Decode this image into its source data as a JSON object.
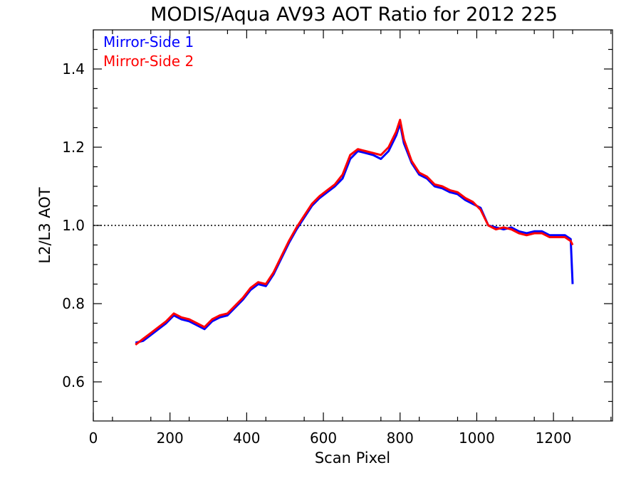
{
  "chart_data": {
    "type": "line",
    "title": "MODIS/Aqua AV93 AOT Ratio for 2012 225",
    "xlabel": "Scan Pixel",
    "ylabel": "L2/L3 AOT",
    "xlim": [
      0,
      1354
    ],
    "ylim": [
      0.5,
      1.5
    ],
    "x_ticks": [
      0,
      200,
      400,
      600,
      800,
      1000,
      1200
    ],
    "x_tick_labels": [
      "0",
      "200",
      "400",
      "600",
      "800",
      "1000",
      "1200"
    ],
    "y_ticks": [
      0.6,
      0.8,
      1.0,
      1.2,
      1.4
    ],
    "y_tick_labels": [
      "0.6",
      "0.8",
      "1.0",
      "1.2",
      "1.4"
    ],
    "reference_line": {
      "y": 1.0,
      "style": "dotted",
      "color": "#000000"
    },
    "grid": false,
    "legend_position": "top-left",
    "legend": [
      {
        "label": "Mirror-Side 1",
        "color": "#0000ff"
      },
      {
        "label": "Mirror-Side 2",
        "color": "#ff0000"
      }
    ],
    "x": [
      110,
      130,
      150,
      170,
      190,
      210,
      230,
      250,
      270,
      290,
      310,
      330,
      350,
      370,
      390,
      410,
      430,
      450,
      470,
      490,
      510,
      530,
      550,
      570,
      590,
      610,
      630,
      650,
      670,
      690,
      710,
      730,
      750,
      770,
      790,
      800,
      810,
      830,
      850,
      870,
      890,
      910,
      930,
      950,
      970,
      990,
      1010,
      1030,
      1050,
      1070,
      1090,
      1110,
      1130,
      1150,
      1170,
      1190,
      1210,
      1230,
      1245,
      1250
    ],
    "series": [
      {
        "name": "Mirror-Side 1",
        "color": "#0000ff",
        "values": [
          0.7,
          0.705,
          0.72,
          0.735,
          0.75,
          0.77,
          0.76,
          0.755,
          0.745,
          0.735,
          0.755,
          0.765,
          0.77,
          0.79,
          0.81,
          0.835,
          0.85,
          0.845,
          0.875,
          0.915,
          0.955,
          0.99,
          1.02,
          1.05,
          1.07,
          1.085,
          1.1,
          1.12,
          1.17,
          1.19,
          1.185,
          1.18,
          1.17,
          1.19,
          1.23,
          1.26,
          1.21,
          1.16,
          1.13,
          1.12,
          1.1,
          1.095,
          1.085,
          1.08,
          1.065,
          1.055,
          1.045,
          1.0,
          0.995,
          0.99,
          0.995,
          0.985,
          0.98,
          0.985,
          0.985,
          0.975,
          0.975,
          0.975,
          0.965,
          0.85
        ]
      },
      {
        "name": "Mirror-Side 2",
        "color": "#ff0000",
        "values": [
          0.695,
          0.71,
          0.725,
          0.74,
          0.755,
          0.775,
          0.765,
          0.76,
          0.75,
          0.74,
          0.76,
          0.77,
          0.775,
          0.795,
          0.815,
          0.84,
          0.855,
          0.85,
          0.88,
          0.92,
          0.96,
          0.995,
          1.025,
          1.055,
          1.075,
          1.09,
          1.105,
          1.13,
          1.18,
          1.195,
          1.19,
          1.185,
          1.18,
          1.2,
          1.24,
          1.27,
          1.22,
          1.165,
          1.135,
          1.125,
          1.105,
          1.1,
          1.09,
          1.085,
          1.07,
          1.06,
          1.04,
          1.0,
          0.99,
          0.995,
          0.99,
          0.98,
          0.975,
          0.98,
          0.98,
          0.97,
          0.97,
          0.97,
          0.96,
          0.95
        ]
      }
    ]
  }
}
